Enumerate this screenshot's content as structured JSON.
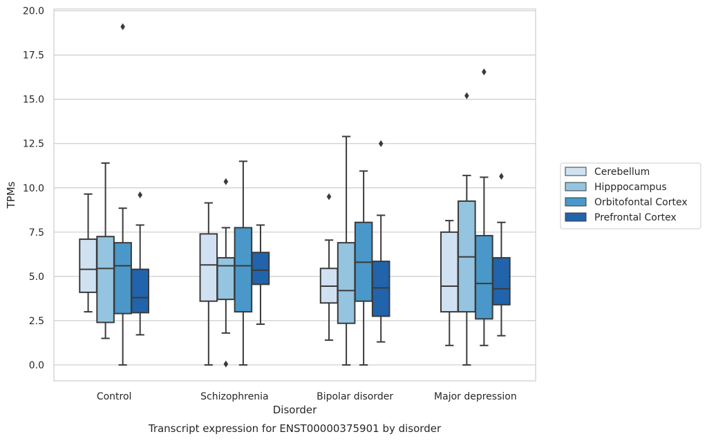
{
  "chart_data": {
    "type": "box",
    "title": "",
    "caption": "Transcript expression for ENST00000375901 by disorder",
    "xlabel": "Disorder",
    "ylabel": "TPMs",
    "ylim": [
      -0.9,
      20.1
    ],
    "yticks": [
      0.0,
      2.5,
      5.0,
      7.5,
      10.0,
      12.5,
      15.0,
      17.5,
      20.0
    ],
    "ytick_labels": [
      "0.0",
      "2.5",
      "5.0",
      "7.5",
      "10.0",
      "12.5",
      "15.0",
      "17.5",
      "20.0"
    ],
    "grid": "horizontal",
    "legend_position": "right",
    "categories": [
      "Control",
      "Schizophrenia",
      "Bipolar disorder",
      "Major depression"
    ],
    "series": [
      {
        "name": "Cerebellum",
        "color": "#d0e1f2",
        "boxes": [
          {
            "whisker_low": 3.0,
            "q1": 4.1,
            "median": 5.4,
            "q3": 7.1,
            "whisker_high": 9.65,
            "outliers": []
          },
          {
            "whisker_low": 0.0,
            "q1": 3.6,
            "median": 5.65,
            "q3": 7.4,
            "whisker_high": 9.15,
            "outliers": []
          },
          {
            "whisker_low": 1.4,
            "q1": 3.5,
            "median": 4.45,
            "q3": 5.45,
            "whisker_high": 7.05,
            "outliers": [
              9.5
            ]
          },
          {
            "whisker_low": 1.1,
            "q1": 3.0,
            "median": 4.45,
            "q3": 7.5,
            "whisker_high": 8.15,
            "outliers": []
          }
        ]
      },
      {
        "name": "Hipppocampus",
        "color": "#94c4df",
        "boxes": [
          {
            "whisker_low": 1.5,
            "q1": 2.4,
            "median": 5.45,
            "q3": 7.25,
            "whisker_high": 11.4,
            "outliers": []
          },
          {
            "whisker_low": 1.8,
            "q1": 3.7,
            "median": 5.6,
            "q3": 6.05,
            "whisker_high": 7.75,
            "outliers": [
              10.35,
              0.05
            ]
          },
          {
            "whisker_low": 0.0,
            "q1": 2.35,
            "median": 4.2,
            "q3": 6.9,
            "whisker_high": 12.9,
            "outliers": []
          },
          {
            "whisker_low": 0.0,
            "q1": 3.0,
            "median": 6.1,
            "q3": 9.25,
            "whisker_high": 10.7,
            "outliers": [
              15.2
            ]
          }
        ]
      },
      {
        "name": "Orbitofontal Cortex",
        "color": "#4a98c9",
        "boxes": [
          {
            "whisker_low": 0.0,
            "q1": 2.9,
            "median": 5.6,
            "q3": 6.9,
            "whisker_high": 8.85,
            "outliers": [
              19.1
            ]
          },
          {
            "whisker_low": 0.0,
            "q1": 3.0,
            "median": 5.6,
            "q3": 7.75,
            "whisker_high": 11.5,
            "outliers": []
          },
          {
            "whisker_low": 0.0,
            "q1": 3.6,
            "median": 5.8,
            "q3": 8.05,
            "whisker_high": 10.95,
            "outliers": []
          },
          {
            "whisker_low": 1.1,
            "q1": 2.6,
            "median": 4.6,
            "q3": 7.3,
            "whisker_high": 10.6,
            "outliers": [
              16.55
            ]
          }
        ]
      },
      {
        "name": "Prefrontal Cortex",
        "color": "#2164ab",
        "boxes": [
          {
            "whisker_low": 1.7,
            "q1": 2.95,
            "median": 3.8,
            "q3": 5.4,
            "whisker_high": 7.9,
            "outliers": [
              9.6
            ]
          },
          {
            "whisker_low": 2.3,
            "q1": 4.55,
            "median": 5.35,
            "q3": 6.35,
            "whisker_high": 7.9,
            "outliers": []
          },
          {
            "whisker_low": 1.3,
            "q1": 2.75,
            "median": 4.35,
            "q3": 5.85,
            "whisker_high": 8.45,
            "outliers": [
              12.5
            ]
          },
          {
            "whisker_low": 1.65,
            "q1": 3.4,
            "median": 4.3,
            "q3": 6.05,
            "whisker_high": 8.05,
            "outliers": [
              10.65
            ]
          }
        ]
      }
    ]
  }
}
